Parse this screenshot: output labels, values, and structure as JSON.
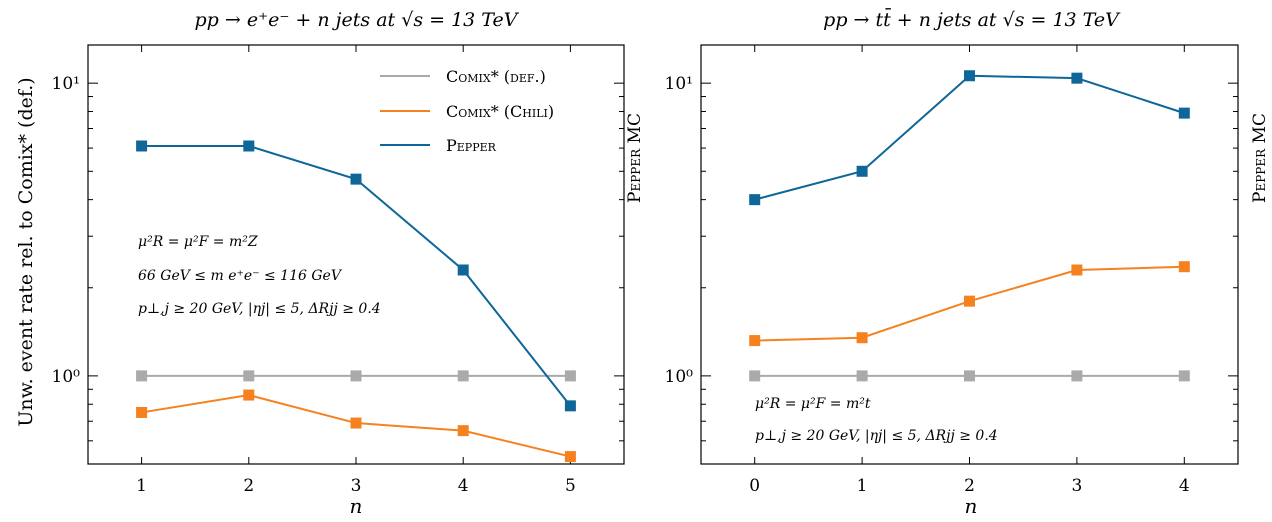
{
  "colors": {
    "comix_def": "#aaaaaa",
    "comix_chili": "#f5821f",
    "pepper": "#0e6699",
    "axes": "#000000"
  },
  "chart_data": [
    {
      "type": "line",
      "title": "pp → e⁺e⁻ + n jets at √s = 13 TeV",
      "xlabel": "n",
      "ylabel": "Unw. event rate rel. to Comix* (def.)",
      "side_label": "Pepper MC",
      "yscale": "log",
      "ylim": [
        0.5,
        13.5
      ],
      "xlim": [
        0.5,
        5.5
      ],
      "x": [
        1,
        2,
        3,
        4,
        5
      ],
      "x_ticks": [
        1,
        2,
        3,
        4,
        5
      ],
      "y_tick_labels": [
        "10⁰",
        "10¹"
      ],
      "legend": "top-right",
      "annotations": [
        "μ²R = μ²F = m²Z",
        "66 GeV ≤ m e⁺e⁻ ≤ 116 GeV",
        "p⊥,j ≥ 20 GeV, |ηj| ≤ 5, ΔRjj ≥ 0.4"
      ],
      "series": [
        {
          "name": "Comix* (def.)",
          "color_key": "comix_def",
          "values": [
            1.0,
            1.0,
            1.0,
            1.0,
            1.0
          ]
        },
        {
          "name": "Comix* (Chili)",
          "color_key": "comix_chili",
          "values": [
            0.75,
            0.86,
            0.69,
            0.65,
            0.53
          ]
        },
        {
          "name": "Pepper",
          "color_key": "pepper",
          "values": [
            6.1,
            6.1,
            4.7,
            2.3,
            0.79
          ]
        }
      ]
    },
    {
      "type": "line",
      "title": "pp → tt̄ + n jets at √s = 13 TeV",
      "xlabel": "n",
      "ylabel": "",
      "side_label": "Pepper MC",
      "yscale": "log",
      "ylim": [
        0.5,
        13.5
      ],
      "xlim": [
        -0.5,
        4.5
      ],
      "x": [
        0,
        1,
        2,
        3,
        4
      ],
      "x_ticks": [
        0,
        1,
        2,
        3,
        4
      ],
      "y_tick_labels": [
        "10⁰",
        "10¹"
      ],
      "legend": "none",
      "annotations": [
        "μ²R = μ²F = m²t",
        "p⊥,j ≥ 20 GeV, |ηj| ≤ 5, ΔRjj ≥ 0.4"
      ],
      "series": [
        {
          "name": "Comix* (def.)",
          "color_key": "comix_def",
          "values": [
            1.0,
            1.0,
            1.0,
            1.0,
            1.0
          ]
        },
        {
          "name": "Comix* (Chili)",
          "color_key": "comix_chili",
          "values": [
            1.32,
            1.35,
            1.8,
            2.3,
            2.36
          ]
        },
        {
          "name": "Pepper",
          "color_key": "pepper",
          "values": [
            4.0,
            5.0,
            10.6,
            10.4,
            7.9
          ]
        }
      ]
    }
  ]
}
